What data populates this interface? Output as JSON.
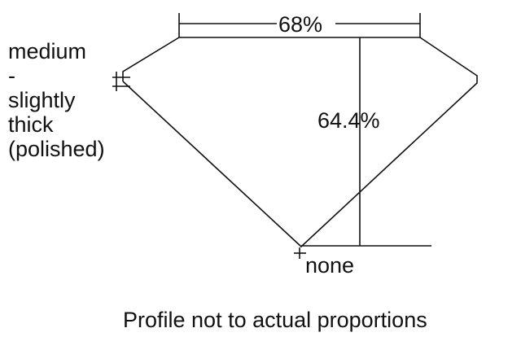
{
  "girdle_label": [
    "medium",
    "-",
    "slightly",
    "thick",
    "(polished)"
  ],
  "table_label": "68%",
  "depth_label": "64.4%",
  "culet_label": "none",
  "caption": "Profile not to actual proportions"
}
